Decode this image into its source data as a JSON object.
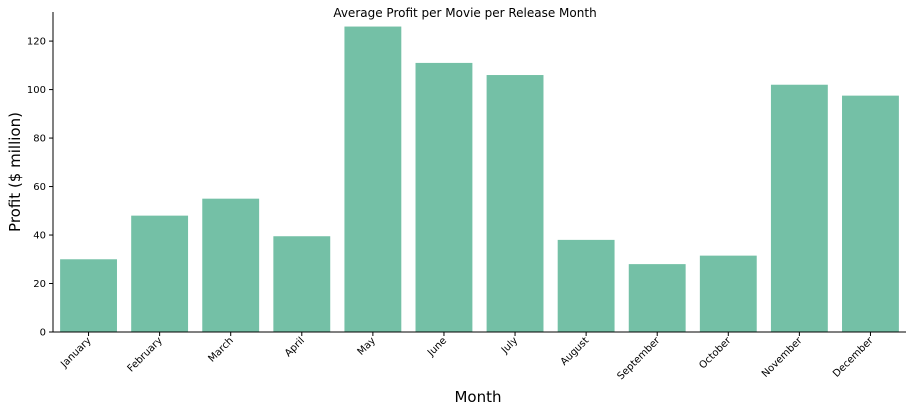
{
  "chart_data": {
    "type": "bar",
    "title": "Average Profit per Movie per Release Month",
    "xlabel": "Month",
    "ylabel": "Profit ($ million)",
    "categories": [
      "January",
      "February",
      "March",
      "April",
      "May",
      "June",
      "July",
      "August",
      "September",
      "October",
      "November",
      "December"
    ],
    "values": [
      30,
      48,
      55,
      39.5,
      126,
      111,
      106,
      38,
      28,
      31.5,
      102,
      97.5
    ],
    "ylim": [
      0,
      132
    ],
    "yticks": [
      0,
      20,
      40,
      60,
      80,
      100,
      120
    ],
    "bar_color": "#74c0a6",
    "grid": false,
    "legend": "none"
  }
}
